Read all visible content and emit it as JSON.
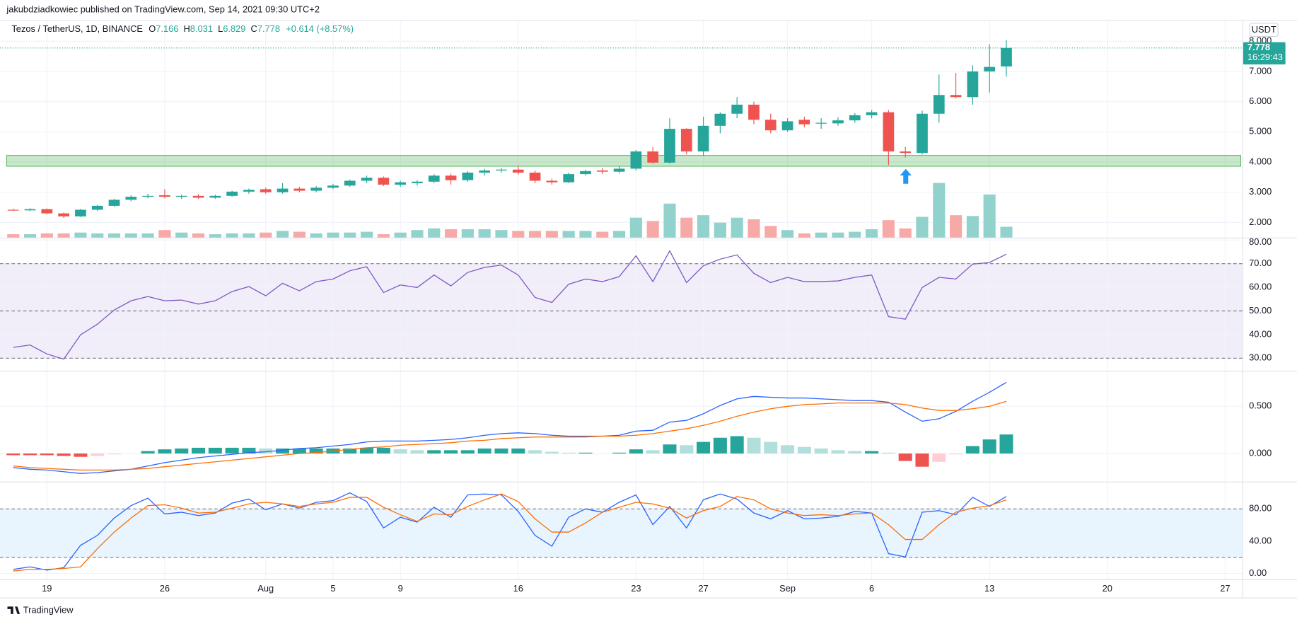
{
  "header": {
    "published": "jakubdziadkowiec published on TradingView.com, Sep 14, 2021 09:30 UTC+2",
    "symbol": "Tezos / TetherUS, 1D, BINANCE",
    "ohlc_keys": [
      "O",
      "H",
      "L",
      "C"
    ],
    "ohlc_values": [
      "7.166",
      "8.031",
      "6.829",
      "7.778"
    ],
    "change": "+0.614 (+8.57%)",
    "currency": "USDT",
    "last_price_label": "7.778",
    "countdown": "16:29:43"
  },
  "footer": {
    "brand": "TradingView"
  },
  "chart_data": [
    {
      "type": "candlestick",
      "x": [
        "07-17",
        "07-18",
        "07-19",
        "07-20",
        "07-21",
        "07-22",
        "07-23",
        "07-24",
        "07-25",
        "07-26",
        "07-27",
        "07-28",
        "07-29",
        "07-30",
        "07-31",
        "08-01",
        "08-02",
        "08-03",
        "08-04",
        "08-05",
        "08-06",
        "08-07",
        "08-08",
        "08-09",
        "08-10",
        "08-11",
        "08-12",
        "08-13",
        "08-14",
        "08-15",
        "08-16",
        "08-17",
        "08-18",
        "08-19",
        "08-20",
        "08-21",
        "08-22",
        "08-23",
        "08-24",
        "08-25",
        "08-26",
        "08-27",
        "08-28",
        "08-29",
        "08-30",
        "08-31",
        "09-01",
        "09-02",
        "09-03",
        "09-04",
        "09-05",
        "09-06",
        "09-07",
        "09-08",
        "09-09",
        "09-10",
        "09-11",
        "09-12",
        "09-13",
        "09-14"
      ],
      "open": [
        2.42,
        2.4,
        2.44,
        2.3,
        2.2,
        2.42,
        2.55,
        2.75,
        2.85,
        2.9,
        2.85,
        2.88,
        2.82,
        2.88,
        3.02,
        3.1,
        3.0,
        3.12,
        3.05,
        3.15,
        3.22,
        3.38,
        3.48,
        3.25,
        3.3,
        3.35,
        3.55,
        3.4,
        3.65,
        3.72,
        3.75,
        3.65,
        3.38,
        3.33,
        3.6,
        3.72,
        3.68,
        3.78,
        4.35,
        3.98,
        5.1,
        4.35,
        5.2,
        5.6,
        5.9,
        5.4,
        5.05,
        5.4,
        5.28,
        5.28,
        5.38,
        5.55,
        5.65,
        4.35,
        4.3,
        5.6,
        6.22,
        6.15,
        7.0,
        7.166
      ],
      "high": [
        2.45,
        2.47,
        2.46,
        2.33,
        2.45,
        2.58,
        2.78,
        2.9,
        2.95,
        3.1,
        2.92,
        2.93,
        2.92,
        3.05,
        3.12,
        3.15,
        3.3,
        3.18,
        3.2,
        3.28,
        3.42,
        3.55,
        3.52,
        3.38,
        3.4,
        3.6,
        3.62,
        3.7,
        3.78,
        3.8,
        3.88,
        3.72,
        3.45,
        3.65,
        3.75,
        3.8,
        3.85,
        4.4,
        4.5,
        5.45,
        5.12,
        5.5,
        5.65,
        6.15,
        6.0,
        5.6,
        5.45,
        5.5,
        5.45,
        5.48,
        5.62,
        5.72,
        5.72,
        4.5,
        5.7,
        6.9,
        6.95,
        7.2,
        7.9,
        8.031
      ],
      "low": [
        2.38,
        2.37,
        2.28,
        2.15,
        2.18,
        2.38,
        2.52,
        2.7,
        2.8,
        2.8,
        2.78,
        2.78,
        2.78,
        2.85,
        2.95,
        2.95,
        2.95,
        3.0,
        3.0,
        3.1,
        3.18,
        3.3,
        3.2,
        3.18,
        3.22,
        3.3,
        3.25,
        3.35,
        3.55,
        3.65,
        3.58,
        3.3,
        3.25,
        3.3,
        3.55,
        3.6,
        3.62,
        3.72,
        3.95,
        3.95,
        4.25,
        4.2,
        4.95,
        5.45,
        5.25,
        4.95,
        5.0,
        5.15,
        5.1,
        5.2,
        5.3,
        5.45,
        3.9,
        4.15,
        4.25,
        5.3,
        6.1,
        5.9,
        6.3,
        6.829
      ],
      "close": [
        2.4,
        2.44,
        2.3,
        2.2,
        2.42,
        2.55,
        2.75,
        2.85,
        2.88,
        2.85,
        2.88,
        2.82,
        2.88,
        3.02,
        3.08,
        3.0,
        3.12,
        3.05,
        3.15,
        3.22,
        3.38,
        3.48,
        3.25,
        3.33,
        3.35,
        3.55,
        3.4,
        3.65,
        3.72,
        3.75,
        3.65,
        3.38,
        3.33,
        3.6,
        3.7,
        3.68,
        3.78,
        4.35,
        3.98,
        5.1,
        4.35,
        5.2,
        5.6,
        5.9,
        5.4,
        5.05,
        5.35,
        5.25,
        5.3,
        5.38,
        5.55,
        5.65,
        4.35,
        4.3,
        5.6,
        6.22,
        6.15,
        7.0,
        7.15,
        7.778
      ],
      "volume": [
        4,
        4,
        5,
        5,
        6,
        5,
        5,
        5,
        5,
        9,
        6,
        5,
        4,
        5,
        5,
        6,
        8,
        7,
        5,
        6,
        6,
        7,
        4,
        6,
        9,
        11,
        10,
        10,
        10,
        9,
        8,
        8,
        8,
        8,
        8,
        7,
        8,
        24,
        20,
        41,
        24,
        27,
        18,
        24,
        22,
        14,
        9,
        5,
        6,
        6,
        7,
        10,
        21,
        11,
        25,
        66,
        27,
        26,
        52,
        13
      ],
      "up_color": "#26a69a",
      "down_color": "#ef5350",
      "up_volume_color": "#92d2cc",
      "down_volume_color": "#f7a9a7",
      "xlim": [
        "07-17",
        "09-28"
      ],
      "xticks": [
        {
          "value": "07-19",
          "label": "19"
        },
        {
          "value": "07-26",
          "label": "26"
        },
        {
          "value": "08-01",
          "label": "Aug"
        },
        {
          "value": "08-05",
          "label": "5"
        },
        {
          "value": "08-09",
          "label": "9"
        },
        {
          "value": "08-16",
          "label": "16"
        },
        {
          "value": "08-23",
          "label": "23"
        },
        {
          "value": "08-27",
          "label": "27"
        },
        {
          "value": "09-01",
          "label": "Sep"
        },
        {
          "value": "09-06",
          "label": "6"
        },
        {
          "value": "09-13",
          "label": "13"
        },
        {
          "value": "09-20",
          "label": "20"
        },
        {
          "value": "09-27",
          "label": "27"
        }
      ],
      "ylim": [
        1.5,
        8.68
      ],
      "yticks": [
        {
          "value": 2,
          "label": "2.000"
        },
        {
          "value": 3,
          "label": "3.000"
        },
        {
          "value": 4,
          "label": "4.000"
        },
        {
          "value": 5,
          "label": "5.000"
        },
        {
          "value": 6,
          "label": "6.000"
        },
        {
          "value": 7,
          "label": "7.000"
        },
        {
          "value": 8,
          "label": "8.000"
        }
      ],
      "zone": [
        3.86,
        4.22
      ],
      "zone_color": "#4caf50",
      "grid": true
    },
    {
      "type": "line",
      "values": [
        34.6,
        35.6,
        31.8,
        29.6,
        39.9,
        44.4,
        50.4,
        54.3,
        56.1,
        54.3,
        54.6,
        52.9,
        54.3,
        58.2,
        60.3,
        56.4,
        61.7,
        58.5,
        62.4,
        63.5,
        67.0,
        68.7,
        57.8,
        61.0,
        59.9,
        65.2,
        60.6,
        66.3,
        68.4,
        69.4,
        65.2,
        55.7,
        53.6,
        61.3,
        63.5,
        62.4,
        64.5,
        73.3,
        62.4,
        75.4,
        62.0,
        69.1,
        71.9,
        73.7,
        65.9,
        62.0,
        64.2,
        62.4,
        62.4,
        62.7,
        64.2,
        65.2,
        47.6,
        46.5,
        59.9,
        64.2,
        63.5,
        69.8,
        70.5,
        74.0
      ],
      "color": "#7e57c2",
      "ylim": [
        24.7,
        80.7
      ],
      "yticks": [
        {
          "value": 30,
          "label": "30.00"
        },
        {
          "value": 40,
          "label": "40.00"
        },
        {
          "value": 50,
          "label": "50.00"
        },
        {
          "value": 60,
          "label": "60.00"
        },
        {
          "value": 70,
          "label": "70.00"
        },
        {
          "value": 80,
          "label": "80.00"
        }
      ],
      "bands": [
        30,
        50,
        70
      ],
      "band_color": "#7e57c2",
      "grid": true
    },
    {
      "type": "macd",
      "series": [
        {
          "color": "#2962ff",
          "values": [
            -0.149,
            -0.167,
            -0.175,
            -0.193,
            -0.211,
            -0.202,
            -0.184,
            -0.167,
            -0.132,
            -0.096,
            -0.07,
            -0.044,
            -0.026,
            -0.009,
            0.009,
            0.018,
            0.035,
            0.053,
            0.061,
            0.079,
            0.096,
            0.123,
            0.132,
            0.132,
            0.132,
            0.14,
            0.149,
            0.167,
            0.193,
            0.211,
            0.219,
            0.211,
            0.193,
            0.184,
            0.184,
            0.184,
            0.193,
            0.237,
            0.246,
            0.333,
            0.351,
            0.421,
            0.509,
            0.579,
            0.605,
            0.596,
            0.588,
            0.588,
            0.579,
            0.57,
            0.561,
            0.561,
            0.544,
            0.439,
            0.342,
            0.368,
            0.447,
            0.553,
            0.649,
            0.754
          ]
        },
        {
          "color": "#ff6d00",
          "values": [
            -0.132,
            -0.149,
            -0.158,
            -0.167,
            -0.175,
            -0.175,
            -0.175,
            -0.167,
            -0.158,
            -0.14,
            -0.123,
            -0.105,
            -0.088,
            -0.07,
            -0.053,
            -0.035,
            -0.018,
            0,
            0.009,
            0.026,
            0.044,
            0.061,
            0.07,
            0.088,
            0.096,
            0.105,
            0.114,
            0.132,
            0.14,
            0.158,
            0.167,
            0.175,
            0.175,
            0.175,
            0.175,
            0.184,
            0.184,
            0.193,
            0.211,
            0.237,
            0.263,
            0.298,
            0.342,
            0.395,
            0.439,
            0.474,
            0.5,
            0.518,
            0.526,
            0.535,
            0.535,
            0.535,
            0.535,
            0.518,
            0.482,
            0.456,
            0.456,
            0.474,
            0.5,
            0.553
          ]
        }
      ],
      "histogram": [
        -0.018,
        -0.018,
        -0.018,
        -0.026,
        -0.035,
        -0.026,
        -0.009,
        0,
        0.026,
        0.044,
        0.053,
        0.061,
        0.061,
        0.061,
        0.061,
        0.053,
        0.053,
        0.053,
        0.053,
        0.053,
        0.053,
        0.061,
        0.061,
        0.044,
        0.035,
        0.035,
        0.035,
        0.035,
        0.053,
        0.053,
        0.053,
        0.035,
        0.018,
        0.009,
        0.009,
        0,
        0.009,
        0.044,
        0.035,
        0.096,
        0.088,
        0.123,
        0.167,
        0.184,
        0.167,
        0.123,
        0.088,
        0.07,
        0.053,
        0.035,
        0.026,
        0.026,
        0.009,
        -0.079,
        -0.14,
        -0.088,
        -0.009,
        0.079,
        0.149,
        0.202
      ],
      "histogram_colors": [
        "#26a69a",
        "#b2dfdb",
        "#ffcdd2",
        "#ef5350"
      ],
      "ylim": [
        -0.298,
        0.868
      ],
      "yticks": [
        {
          "value": 0,
          "label": "0.000"
        },
        {
          "value": 0.5,
          "label": "0.500"
        }
      ],
      "grid": true
    },
    {
      "type": "line",
      "series": [
        {
          "color": "#2962ff",
          "values": [
            5.1,
            8.2,
            4.1,
            7.2,
            34.9,
            47.2,
            68.7,
            84.1,
            93.3,
            73.8,
            75.9,
            71.8,
            74.9,
            87.2,
            92.3,
            79.0,
            86.2,
            81.0,
            88.2,
            90.3,
            100.0,
            89.2,
            56.4,
            69.7,
            63.6,
            82.1,
            69.7,
            97.4,
            98.5,
            97.4,
            76.9,
            47.2,
            33.8,
            69.7,
            80.0,
            75.9,
            88.2,
            97.4,
            60.5,
            83.1,
            56.4,
            91.3,
            98.5,
            92.3,
            74.9,
            67.7,
            77.9,
            67.7,
            68.7,
            70.8,
            76.9,
            74.9,
            24.6,
            20.5,
            75.9,
            77.9,
            72.8,
            94.4,
            83.1,
            95.4
          ]
        },
        {
          "color": "#ff6d00",
          "values": [
            3.1,
            5.1,
            5.1,
            6.2,
            8.2,
            30.8,
            51.3,
            68.7,
            84.1,
            85.1,
            81.0,
            74.9,
            75.9,
            81.0,
            86.2,
            88.2,
            86.2,
            83.1,
            86.2,
            88.2,
            94.4,
            94.4,
            82.1,
            72.8,
            64.6,
            73.8,
            72.8,
            83.1,
            91.3,
            98.5,
            89.2,
            67.7,
            51.3,
            51.3,
            62.6,
            75.9,
            82.1,
            88.2,
            86.2,
            81.0,
            68.7,
            77.9,
            83.1,
            95.4,
            91.3,
            80.0,
            74.9,
            71.8,
            72.8,
            71.8,
            73.8,
            74.9,
            60.5,
            42.1,
            42.1,
            60.5,
            75.9,
            81.0,
            84.1,
            91.3
          ]
        }
      ],
      "ylim": [
        -7.2,
        112.8
      ],
      "yticks": [
        {
          "value": 0,
          "label": "0.00"
        },
        {
          "value": 40,
          "label": "40.00"
        },
        {
          "value": 80,
          "label": "80.00"
        }
      ],
      "bands": [
        20,
        80
      ],
      "band_color": "#2196f3",
      "grid": true
    }
  ]
}
